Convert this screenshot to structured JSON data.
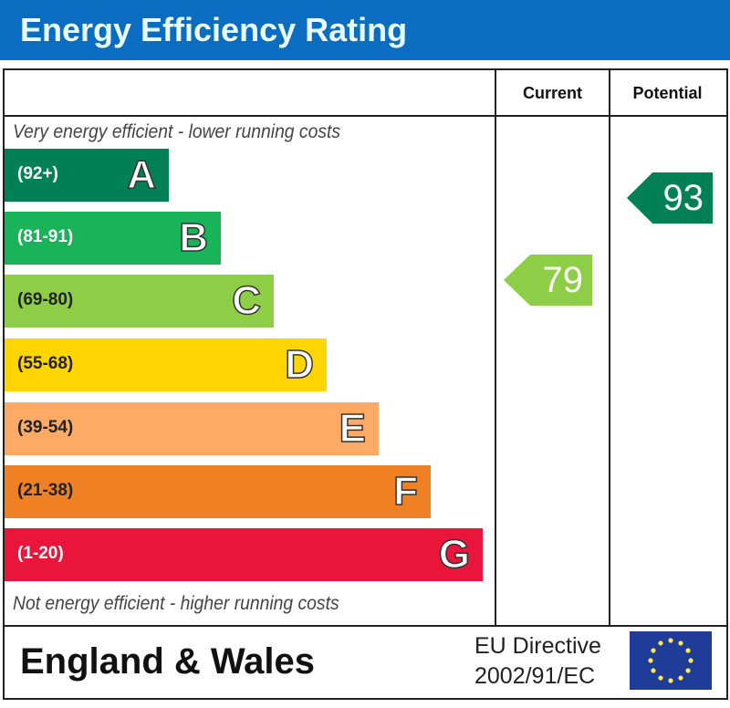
{
  "title": "Energy Efficiency Rating",
  "chart_data": {
    "type": "bar",
    "title": "Energy Efficiency Rating",
    "columns": [
      "Current",
      "Potential"
    ],
    "top_note": "Very energy efficient - lower running costs",
    "bottom_note": "Not energy efficient - higher running costs",
    "bands": [
      {
        "letter": "A",
        "range": "(92+)",
        "color": "#008054"
      },
      {
        "letter": "B",
        "range": "(81-91)",
        "color": "#19b459"
      },
      {
        "letter": "C",
        "range": "(69-80)",
        "color": "#8dce46"
      },
      {
        "letter": "D",
        "range": "(55-68)",
        "color": "#ffd500"
      },
      {
        "letter": "E",
        "range": "(39-54)",
        "color": "#fcaa65"
      },
      {
        "letter": "F",
        "range": "(21-38)",
        "color": "#ef8023"
      },
      {
        "letter": "G",
        "range": "(1-20)",
        "color": "#e9153b"
      }
    ],
    "current": {
      "value": "79",
      "band": "C",
      "color": "#8dce46"
    },
    "potential": {
      "value": "93",
      "band": "A",
      "color": "#008054"
    }
  },
  "footer": {
    "region": "England & Wales",
    "directive_line1": "EU Directive",
    "directive_line2": "2002/91/EC",
    "flag": "eu-flag"
  }
}
